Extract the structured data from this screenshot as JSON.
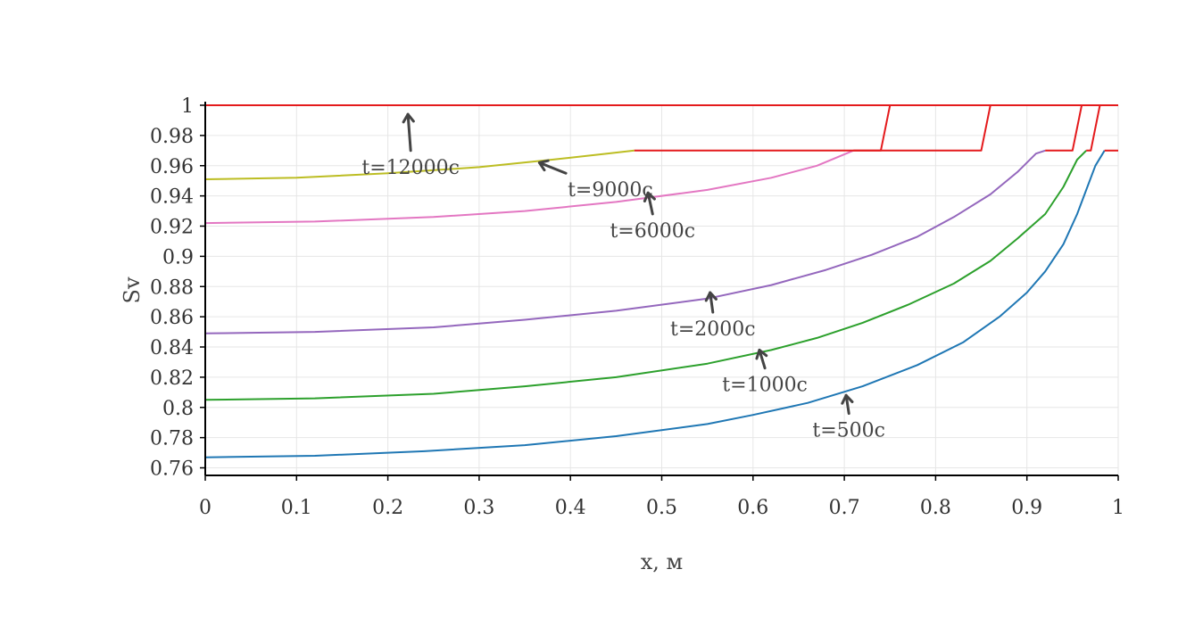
{
  "chart_data": {
    "type": "line",
    "title": "",
    "xlabel": "x, м",
    "ylabel": "Sv",
    "xlim": [
      0,
      1
    ],
    "ylim": [
      0.755,
      1.0
    ],
    "grid": true,
    "x_ticks": [
      0,
      0.1,
      0.2,
      0.3,
      0.4,
      0.5,
      0.6,
      0.7,
      0.8,
      0.9,
      1
    ],
    "x_tick_labels": [
      "0",
      "0.1",
      "0.2",
      "0.3",
      "0.4",
      "0.5",
      "0.6",
      "0.7",
      "0.8",
      "0.9",
      "1"
    ],
    "y_ticks": [
      0.76,
      0.78,
      0.8,
      0.82,
      0.84,
      0.86,
      0.88,
      0.9,
      0.92,
      0.94,
      0.96,
      0.98,
      1
    ],
    "y_tick_labels": [
      "0.76",
      "0.78",
      "0.8",
      "0.82",
      "0.84",
      "0.86",
      "0.88",
      "0.9",
      "0.92",
      "0.94",
      "0.96",
      "0.98",
      "1"
    ],
    "series": [
      {
        "color": "#1f77b4",
        "points": [
          [
            0,
            0.767
          ],
          [
            0.12,
            0.768
          ],
          [
            0.24,
            0.771
          ],
          [
            0.35,
            0.775
          ],
          [
            0.45,
            0.781
          ],
          [
            0.55,
            0.789
          ],
          [
            0.6,
            0.795
          ],
          [
            0.66,
            0.803
          ],
          [
            0.72,
            0.814
          ],
          [
            0.78,
            0.828
          ],
          [
            0.83,
            0.843
          ],
          [
            0.87,
            0.86
          ],
          [
            0.9,
            0.876
          ],
          [
            0.92,
            0.89
          ],
          [
            0.94,
            0.908
          ],
          [
            0.955,
            0.928
          ],
          [
            0.965,
            0.944
          ],
          [
            0.975,
            0.96
          ],
          [
            0.985,
            0.97
          ]
        ]
      },
      {
        "color": "#2ca02c",
        "points": [
          [
            0,
            0.805
          ],
          [
            0.12,
            0.806
          ],
          [
            0.25,
            0.809
          ],
          [
            0.35,
            0.814
          ],
          [
            0.45,
            0.82
          ],
          [
            0.55,
            0.829
          ],
          [
            0.62,
            0.838
          ],
          [
            0.67,
            0.846
          ],
          [
            0.72,
            0.856
          ],
          [
            0.77,
            0.868
          ],
          [
            0.82,
            0.882
          ],
          [
            0.86,
            0.897
          ],
          [
            0.89,
            0.912
          ],
          [
            0.92,
            0.928
          ],
          [
            0.94,
            0.946
          ],
          [
            0.955,
            0.964
          ],
          [
            0.965,
            0.97
          ]
        ]
      },
      {
        "color": "#9467bd",
        "points": [
          [
            0,
            0.849
          ],
          [
            0.12,
            0.85
          ],
          [
            0.25,
            0.853
          ],
          [
            0.35,
            0.858
          ],
          [
            0.45,
            0.864
          ],
          [
            0.55,
            0.872
          ],
          [
            0.62,
            0.881
          ],
          [
            0.68,
            0.891
          ],
          [
            0.73,
            0.901
          ],
          [
            0.78,
            0.913
          ],
          [
            0.82,
            0.926
          ],
          [
            0.86,
            0.941
          ],
          [
            0.89,
            0.956
          ],
          [
            0.91,
            0.968
          ],
          [
            0.92,
            0.97
          ]
        ]
      },
      {
        "color": "#e377c2",
        "points": [
          [
            0,
            0.922
          ],
          [
            0.12,
            0.923
          ],
          [
            0.25,
            0.926
          ],
          [
            0.35,
            0.93
          ],
          [
            0.45,
            0.936
          ],
          [
            0.55,
            0.944
          ],
          [
            0.62,
            0.952
          ],
          [
            0.67,
            0.96
          ],
          [
            0.71,
            0.97
          ]
        ]
      },
      {
        "color": "#bcbd22",
        "points": [
          [
            0,
            0.951
          ],
          [
            0.1,
            0.952
          ],
          [
            0.2,
            0.955
          ],
          [
            0.3,
            0.959
          ],
          [
            0.38,
            0.964
          ],
          [
            0.44,
            0.968
          ],
          [
            0.47,
            0.97
          ]
        ]
      },
      {
        "color": "#e41a1c",
        "points": [
          [
            0,
            1.0
          ],
          [
            1.0,
            1.0
          ]
        ]
      },
      {
        "color": "#e41a1c",
        "points": [
          [
            0.47,
            0.97
          ],
          [
            0.74,
            0.97
          ],
          [
            0.75,
            1.0
          ]
        ]
      },
      {
        "color": "#e41a1c",
        "points": [
          [
            0.71,
            0.97
          ],
          [
            0.85,
            0.97
          ],
          [
            0.86,
            1.0
          ]
        ]
      },
      {
        "color": "#e41a1c",
        "points": [
          [
            0.92,
            0.97
          ],
          [
            0.95,
            0.97
          ],
          [
            0.96,
            1.0
          ]
        ]
      },
      {
        "color": "#e41a1c",
        "points": [
          [
            0.965,
            0.97
          ],
          [
            0.97,
            0.97
          ],
          [
            0.98,
            1.0
          ]
        ]
      },
      {
        "color": "#e41a1c",
        "points": [
          [
            0.985,
            0.97
          ],
          [
            1.0,
            0.97
          ]
        ]
      }
    ],
    "annotations": [
      {
        "text": "t=12000c",
        "ax": 0.225,
        "ay": 0.97,
        "hx": 0.222,
        "hy": 0.994
      },
      {
        "text": "t=9000c",
        "ax": 0.395,
        "ay": 0.955,
        "hx": 0.366,
        "hy": 0.962
      },
      {
        "text": "t=6000c",
        "ax": 0.49,
        "ay": 0.928,
        "hx": 0.485,
        "hy": 0.942
      },
      {
        "text": "t=2000c",
        "ax": 0.556,
        "ay": 0.863,
        "hx": 0.553,
        "hy": 0.876
      },
      {
        "text": "t=1000c",
        "ax": 0.613,
        "ay": 0.826,
        "hx": 0.607,
        "hy": 0.838
      },
      {
        "text": "t=500c",
        "ax": 0.705,
        "ay": 0.796,
        "hx": 0.702,
        "hy": 0.808
      }
    ]
  }
}
